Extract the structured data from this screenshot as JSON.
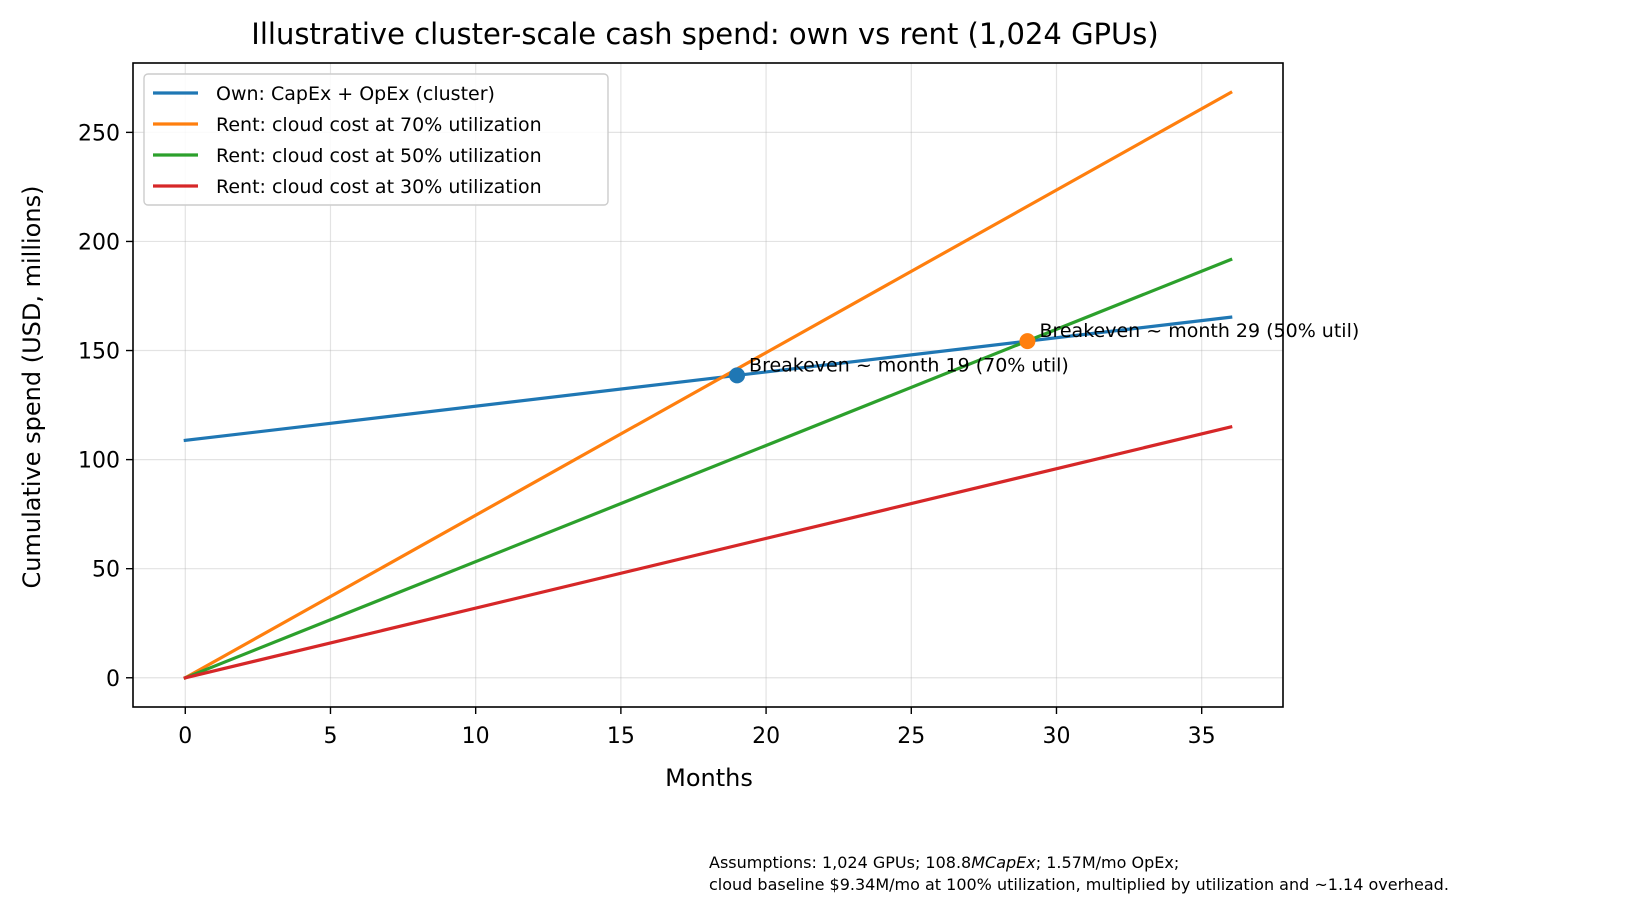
{
  "chart_data": {
    "type": "line",
    "title": "Illustrative cluster-scale cash spend: own vs rent (1,024 GPUs)",
    "xlabel": "Months",
    "ylabel": "Cumulative spend (USD, millions)",
    "xlim": [
      -1.8,
      37.8
    ],
    "ylim": [
      -13.4,
      281.8
    ],
    "xticks": [
      0,
      5,
      10,
      15,
      20,
      25,
      30,
      35
    ],
    "yticks": [
      0,
      50,
      100,
      150,
      200,
      250
    ],
    "grid": true,
    "legend_position": "top-left",
    "series": [
      {
        "name": "Own: CapEx + OpEx (cluster)",
        "color": "#1f77b4",
        "x": [
          0,
          36
        ],
        "values": [
          108.8,
          165.3
        ]
      },
      {
        "name": "Rent: cloud cost at 70% utilization",
        "color": "#ff7f0e",
        "x": [
          0,
          36
        ],
        "values": [
          0,
          268.3
        ]
      },
      {
        "name": "Rent: cloud cost at 50% utilization",
        "color": "#2ca02c",
        "x": [
          0,
          36
        ],
        "values": [
          0,
          191.7
        ]
      },
      {
        "name": "Rent: cloud cost at 30% utilization",
        "color": "#d62728",
        "x": [
          0,
          36
        ],
        "values": [
          0,
          115.0
        ]
      }
    ],
    "annotations": [
      {
        "text": "Breakeven ~ month 19 (70% util)",
        "x": 19,
        "y": 138.6,
        "color": "#1f77b4"
      },
      {
        "text": "Breakeven ~ month 29 (50% util)",
        "x": 29,
        "y": 154.3,
        "color": "#ff7f0e"
      }
    ],
    "footnote": [
      "Assumptions: 1,024 GPUs; 108.8",
      "MCapEx",
      "; 1.57M/mo OpEx;",
      "cloud baseline $9.34M/mo at 100% utilization, multiplied by utilization and ~1.14 overhead."
    ]
  }
}
